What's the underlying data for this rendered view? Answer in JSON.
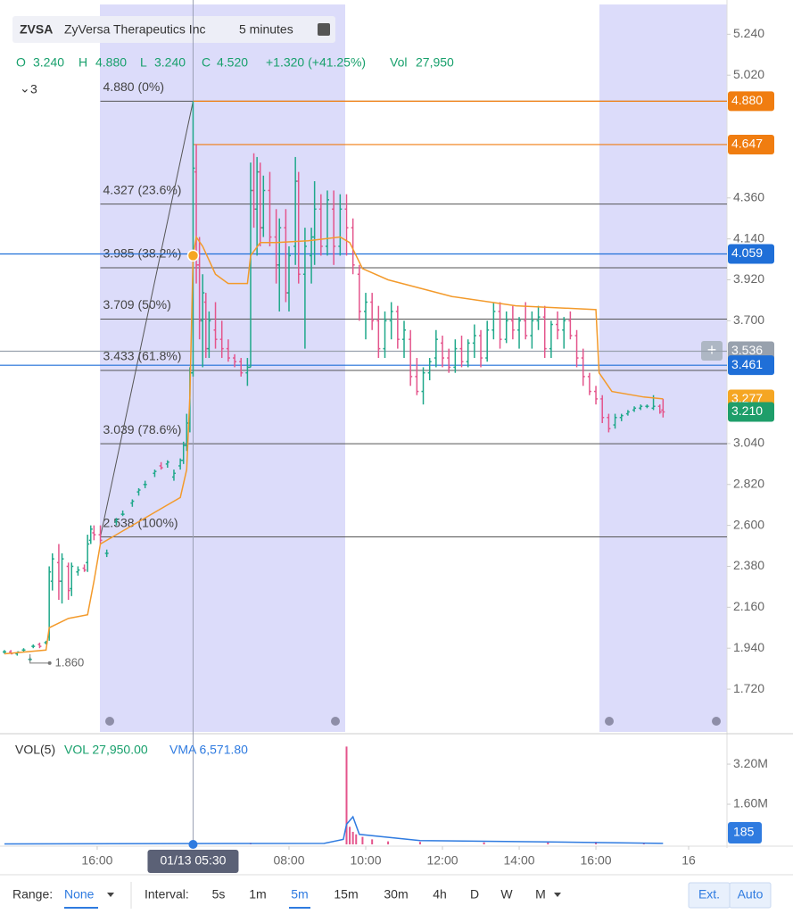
{
  "header": {
    "symbol": "ZVSA",
    "name": "ZyVersa Therapeutics Inc",
    "interval": "5 minutes",
    "quote": [
      "O",
      "3.240",
      "H",
      "4.880",
      "L",
      "3.240",
      "C",
      "4.520",
      "+1.320 (+41.25%)",
      "Vol",
      "27,950"
    ],
    "studies": "3"
  },
  "chart_data": [
    {
      "type": "ohlc",
      "xlim": [
        0,
        226
      ],
      "xticks": [
        {
          "value": 29,
          "label": "16:00"
        },
        {
          "value": 89,
          "label": "08:00"
        },
        {
          "value": 113,
          "label": "10:00"
        },
        {
          "value": 137,
          "label": "12:00"
        },
        {
          "value": 161,
          "label": "14:00"
        },
        {
          "value": 185,
          "label": "16:00"
        },
        {
          "value": 214,
          "label": "16"
        }
      ],
      "ylim": [
        1.49,
        5.4
      ],
      "yticks": [
        {
          "value": 5.24,
          "label": "5.240"
        },
        {
          "value": 5.02,
          "label": "5.020"
        },
        {
          "value": 4.36,
          "label": "4.360"
        },
        {
          "value": 4.14,
          "label": "4.140"
        },
        {
          "value": 3.92,
          "label": "3.920"
        },
        {
          "value": 3.7,
          "label": "3.700"
        },
        {
          "value": 3.04,
          "label": "3.040"
        },
        {
          "value": 2.82,
          "label": "2.820"
        },
        {
          "value": 2.6,
          "label": "2.600"
        },
        {
          "value": 2.38,
          "label": "2.380"
        },
        {
          "value": 2.16,
          "label": "2.160"
        },
        {
          "value": 1.94,
          "label": "1.940"
        },
        {
          "value": 1.72,
          "label": "1.720"
        }
      ],
      "up_color": "#1fa88a",
      "down_color": "#e4558c",
      "candles": [
        [
          0,
          1.92,
          1.93,
          1.91,
          1.92
        ],
        [
          2,
          1.92,
          1.93,
          1.91,
          1.91
        ],
        [
          4,
          1.91,
          1.92,
          1.9,
          1.92
        ],
        [
          6,
          1.93,
          1.94,
          1.92,
          1.93
        ],
        [
          8,
          1.88,
          1.89,
          1.87,
          1.88
        ],
        [
          9,
          1.95,
          1.96,
          1.94,
          1.95
        ],
        [
          11,
          1.96,
          1.97,
          1.94,
          1.95
        ],
        [
          13,
          1.97,
          1.98,
          1.96,
          1.97
        ],
        [
          14,
          2.0,
          2.38,
          1.98,
          2.35
        ],
        [
          15,
          2.3,
          2.45,
          2.25,
          2.42
        ],
        [
          17,
          2.4,
          2.5,
          2.2,
          2.3
        ],
        [
          18,
          2.3,
          2.45,
          2.18,
          2.42
        ],
        [
          20,
          2.38,
          2.4,
          2.2,
          2.25
        ],
        [
          21,
          2.26,
          2.4,
          2.22,
          2.38
        ],
        [
          23,
          2.35,
          2.38,
          2.33,
          2.36
        ],
        [
          25,
          2.37,
          2.39,
          2.35,
          2.36
        ],
        [
          26,
          2.4,
          2.55,
          2.35,
          2.5
        ],
        [
          27,
          2.52,
          2.6,
          2.5,
          2.58
        ],
        [
          28,
          2.56,
          2.6,
          2.52,
          2.55
        ],
        [
          30,
          2.55,
          2.6,
          2.5,
          2.52
        ],
        [
          32,
          2.45,
          2.47,
          2.43,
          2.45
        ],
        [
          35,
          2.62,
          2.64,
          2.6,
          2.63
        ],
        [
          37,
          2.66,
          2.68,
          2.65,
          2.66
        ],
        [
          40,
          2.72,
          2.74,
          2.7,
          2.73
        ],
        [
          42,
          2.78,
          2.8,
          2.76,
          2.79
        ],
        [
          44,
          2.82,
          2.84,
          2.8,
          2.82
        ],
        [
          47,
          2.88,
          2.9,
          2.86,
          2.89
        ],
        [
          49,
          2.92,
          2.94,
          2.9,
          2.91
        ],
        [
          51,
          2.93,
          2.95,
          2.91,
          2.94
        ],
        [
          53,
          2.86,
          2.9,
          2.84,
          2.88
        ],
        [
          55,
          2.92,
          2.96,
          2.9,
          2.95
        ],
        [
          56,
          2.95,
          3.05,
          2.93,
          3.03
        ],
        [
          57,
          3.03,
          3.2,
          3.0,
          3.15
        ],
        [
          58,
          3.15,
          3.45,
          3.1,
          3.42
        ],
        [
          59,
          3.42,
          4.88,
          3.4,
          4.52
        ],
        [
          60,
          4.5,
          4.65,
          3.9,
          4.0
        ],
        [
          61,
          4.0,
          4.15,
          3.6,
          3.7
        ],
        [
          62,
          3.7,
          3.95,
          3.45,
          3.85
        ],
        [
          63,
          3.8,
          3.85,
          3.5,
          3.55
        ],
        [
          64,
          3.55,
          3.75,
          3.5,
          3.7
        ],
        [
          66,
          3.65,
          3.8,
          3.55,
          3.6
        ],
        [
          68,
          3.6,
          3.7,
          3.5,
          3.55
        ],
        [
          70,
          3.55,
          3.6,
          3.48,
          3.5
        ],
        [
          72,
          3.5,
          3.52,
          3.45,
          3.48
        ],
        [
          74,
          3.48,
          3.5,
          3.4,
          3.42
        ],
        [
          76,
          3.42,
          3.5,
          3.35,
          3.45
        ],
        [
          77,
          3.45,
          4.55,
          3.45,
          4.4
        ],
        [
          78,
          4.4,
          4.6,
          4.2,
          4.3
        ],
        [
          79,
          4.3,
          4.58,
          4.05,
          4.5
        ],
        [
          80,
          4.5,
          4.55,
          4.1,
          4.2
        ],
        [
          81,
          4.2,
          4.48,
          4.15,
          4.4
        ],
        [
          83,
          4.4,
          4.5,
          4.1,
          4.15
        ],
        [
          85,
          4.15,
          4.3,
          3.9,
          4.0
        ],
        [
          86,
          4.0,
          4.25,
          3.75,
          4.2
        ],
        [
          88,
          4.2,
          4.3,
          3.8,
          3.85
        ],
        [
          89,
          3.85,
          4.1,
          3.75,
          4.05
        ],
        [
          91,
          4.1,
          4.58,
          4.0,
          4.45
        ],
        [
          92,
          4.45,
          4.5,
          3.9,
          3.95
        ],
        [
          94,
          3.95,
          4.2,
          3.55,
          4.1
        ],
        [
          96,
          4.05,
          4.2,
          3.9,
          4.15
        ],
        [
          97,
          4.15,
          4.45,
          4.0,
          4.3
        ],
        [
          99,
          4.3,
          4.38,
          4.05,
          4.1
        ],
        [
          101,
          4.1,
          4.4,
          4.05,
          4.35
        ],
        [
          103,
          4.3,
          4.4,
          4.0,
          4.1
        ],
        [
          105,
          4.1,
          4.38,
          4.05,
          4.3
        ],
        [
          107,
          4.3,
          4.38,
          4.05,
          4.2
        ],
        [
          109,
          4.2,
          4.25,
          3.95,
          4.0
        ],
        [
          111,
          3.95,
          4.0,
          3.7,
          3.75
        ],
        [
          113,
          3.75,
          3.85,
          3.6,
          3.8
        ],
        [
          115,
          3.8,
          3.85,
          3.65,
          3.7
        ],
        [
          117,
          3.7,
          3.78,
          3.5,
          3.55
        ],
        [
          119,
          3.55,
          3.75,
          3.5,
          3.7
        ],
        [
          121,
          3.7,
          3.8,
          3.6,
          3.75
        ],
        [
          123,
          3.75,
          3.78,
          3.55,
          3.6
        ],
        [
          125,
          3.6,
          3.7,
          3.5,
          3.65
        ],
        [
          127,
          3.6,
          3.65,
          3.35,
          3.4
        ],
        [
          129,
          3.4,
          3.5,
          3.3,
          3.32
        ],
        [
          131,
          3.32,
          3.45,
          3.25,
          3.42
        ],
        [
          133,
          3.42,
          3.5,
          3.38,
          3.48
        ],
        [
          135,
          3.5,
          3.65,
          3.45,
          3.6
        ],
        [
          137,
          3.58,
          3.62,
          3.45,
          3.5
        ],
        [
          139,
          3.5,
          3.55,
          3.42,
          3.45
        ],
        [
          141,
          3.45,
          3.6,
          3.42,
          3.55
        ],
        [
          143,
          3.55,
          3.62,
          3.45,
          3.48
        ],
        [
          145,
          3.48,
          3.6,
          3.45,
          3.58
        ],
        [
          147,
          3.58,
          3.68,
          3.5,
          3.62
        ],
        [
          149,
          3.62,
          3.65,
          3.45,
          3.5
        ],
        [
          151,
          3.5,
          3.7,
          3.48,
          3.65
        ],
        [
          153,
          3.65,
          3.8,
          3.6,
          3.75
        ],
        [
          155,
          3.75,
          3.8,
          3.55,
          3.6
        ],
        [
          157,
          3.6,
          3.75,
          3.58,
          3.7
        ],
        [
          159,
          3.7,
          3.78,
          3.6,
          3.65
        ],
        [
          161,
          3.65,
          3.72,
          3.55,
          3.7
        ],
        [
          163,
          3.7,
          3.8,
          3.6,
          3.62
        ],
        [
          165,
          3.62,
          3.75,
          3.55,
          3.7
        ],
        [
          167,
          3.7,
          3.78,
          3.65,
          3.72
        ],
        [
          169,
          3.72,
          3.78,
          3.5,
          3.55
        ],
        [
          171,
          3.55,
          3.7,
          3.5,
          3.68
        ],
        [
          173,
          3.68,
          3.75,
          3.6,
          3.65
        ],
        [
          175,
          3.65,
          3.72,
          3.55,
          3.7
        ],
        [
          177,
          3.7,
          3.75,
          3.6,
          3.62
        ],
        [
          179,
          3.62,
          3.65,
          3.45,
          3.5
        ],
        [
          181,
          3.5,
          3.55,
          3.35,
          3.4
        ],
        [
          183,
          3.4,
          3.42,
          3.3,
          3.32
        ],
        [
          185,
          3.32,
          3.35,
          3.25,
          3.28
        ],
        [
          187,
          3.28,
          3.3,
          3.15,
          3.18
        ],
        [
          189,
          3.18,
          3.2,
          3.1,
          3.12
        ],
        [
          191,
          3.14,
          3.2,
          3.12,
          3.18
        ],
        [
          193,
          3.18,
          3.2,
          3.16,
          3.19
        ],
        [
          195,
          3.2,
          3.22,
          3.19,
          3.21
        ],
        [
          197,
          3.22,
          3.24,
          3.21,
          3.23
        ],
        [
          199,
          3.23,
          3.25,
          3.22,
          3.24
        ],
        [
          201,
          3.24,
          3.25,
          3.23,
          3.24
        ],
        [
          203,
          3.23,
          3.3,
          3.22,
          3.24
        ],
        [
          205,
          3.24,
          3.25,
          3.2,
          3.21
        ],
        [
          206,
          3.22,
          3.28,
          3.18,
          3.21
        ]
      ],
      "ma": {
        "color": "#f39a2b",
        "points": [
          [
            0,
            1.91
          ],
          [
            13,
            1.93
          ],
          [
            14,
            2.05
          ],
          [
            20,
            2.1
          ],
          [
            26,
            2.12
          ],
          [
            28,
            2.3
          ],
          [
            30,
            2.5
          ],
          [
            40,
            2.6
          ],
          [
            50,
            2.7
          ],
          [
            55,
            2.75
          ],
          [
            57,
            2.9
          ],
          [
            58,
            3.3
          ],
          [
            59,
            4.05
          ],
          [
            60,
            4.15
          ],
          [
            62,
            4.1
          ],
          [
            66,
            3.95
          ],
          [
            70,
            3.9
          ],
          [
            76,
            3.9
          ],
          [
            77,
            4.05
          ],
          [
            80,
            4.12
          ],
          [
            85,
            4.12
          ],
          [
            95,
            4.13
          ],
          [
            105,
            4.15
          ],
          [
            108,
            4.12
          ],
          [
            112,
            3.98
          ],
          [
            120,
            3.92
          ],
          [
            140,
            3.83
          ],
          [
            160,
            3.78
          ],
          [
            185,
            3.76
          ],
          [
            186,
            3.42
          ],
          [
            190,
            3.32
          ],
          [
            200,
            3.29
          ],
          [
            206,
            3.28
          ]
        ]
      },
      "fib": {
        "x": [
          30,
          59
        ],
        "levels": [
          {
            "value": 4.88,
            "label": "4.880 (0%)"
          },
          {
            "value": 4.327,
            "label": "4.327 (23.6%)"
          },
          {
            "value": 3.985,
            "label": "3.985 (38.2%)"
          },
          {
            "value": 3.709,
            "label": "3.709 (50%)"
          },
          {
            "value": 3.433,
            "label": "3.433 (61.8%)"
          },
          {
            "value": 3.039,
            "label": "3.039 (78.6%)"
          },
          {
            "value": 2.538,
            "label": "2.538 (100%)"
          }
        ]
      },
      "price_tags": [
        {
          "value": 4.88,
          "label": "4.880",
          "color": "#f07d10",
          "line": true
        },
        {
          "value": 4.647,
          "label": "4.647",
          "color": "#f07d10",
          "line": true
        },
        {
          "value": 4.059,
          "label": "4.059",
          "color": "#1f6fd8",
          "line": true
        },
        {
          "value": 3.536,
          "label": "3.536",
          "color": "#98a1ad",
          "line": true
        },
        {
          "value": 3.461,
          "label": "3.461",
          "color": "#1f6fd8",
          "line": true
        },
        {
          "value": 3.277,
          "label": "3.277",
          "color": "#f5a623",
          "line": false
        },
        {
          "value": 3.21,
          "label": "3.210",
          "color": "#1e9e6a",
          "line": false
        }
      ],
      "low_marker": {
        "x": 8,
        "value": 1.86,
        "label": "1.860"
      },
      "crosshair": {
        "x": 59,
        "label": "01/13 05:30"
      }
    },
    {
      "type": "volume",
      "title": "VOL(5)",
      "last": "VOL 27,950.00",
      "vma_label": "VMA 6,571.80",
      "ylim": [
        0,
        4270000
      ],
      "yticks": [
        {
          "value": 1600000,
          "label": "1.60M"
        },
        {
          "value": 3200000,
          "label": "3.20M"
        }
      ],
      "bars": [
        [
          59,
          120000
        ],
        [
          77,
          60000
        ],
        [
          107,
          3900000
        ],
        [
          108,
          700000
        ],
        [
          109,
          500000
        ],
        [
          110,
          400000
        ],
        [
          112,
          300000
        ],
        [
          115,
          200000
        ],
        [
          120,
          120000
        ],
        [
          130,
          100000
        ],
        [
          150,
          80000
        ],
        [
          170,
          80000
        ],
        [
          185,
          100000
        ],
        [
          200,
          60000
        ]
      ],
      "vma": [
        [
          0,
          20000
        ],
        [
          50,
          30000
        ],
        [
          100,
          40000
        ],
        [
          106,
          200000
        ],
        [
          107,
          800000
        ],
        [
          109,
          1100000
        ],
        [
          111,
          400000
        ],
        [
          130,
          150000
        ],
        [
          170,
          100000
        ],
        [
          206,
          40000
        ]
      ],
      "last_tag": 185
    }
  ],
  "toolbar": {
    "range_label": "Range:",
    "range": "None",
    "interval_label": "Interval:",
    "intervals": [
      "5s",
      "1m",
      "5m",
      "15m",
      "30m",
      "4h",
      "D",
      "W",
      "M"
    ],
    "active": "5m",
    "buttons": [
      "Ext.",
      "Auto"
    ]
  }
}
